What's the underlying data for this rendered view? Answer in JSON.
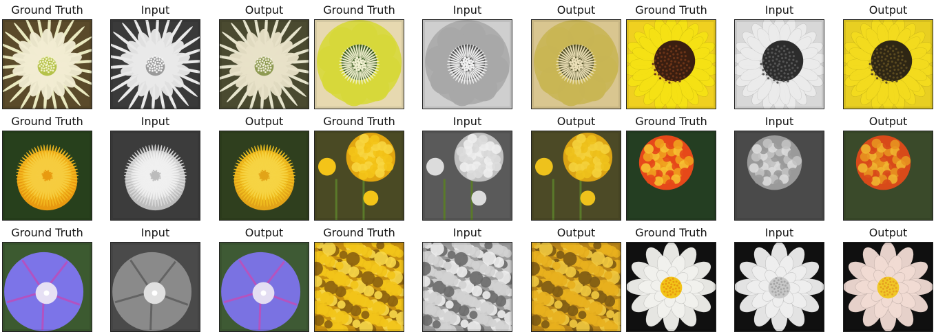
{
  "figure": {
    "rows": [
      [
        {
          "title": "Ground Truth",
          "kind": "cactus",
          "mode": "color",
          "bg": "#5a4a2a",
          "petal": "#f1ecd2",
          "center": "#b5c24a",
          "dot": "#f2f2c8"
        },
        {
          "title": "Input",
          "kind": "cactus",
          "mode": "gray",
          "bg": "#3a3a3a",
          "petal": "#e9e9e9",
          "center": "#9a9a9a",
          "dot": "#f4f4f4"
        },
        {
          "title": "Output",
          "kind": "cactus",
          "mode": "color",
          "bg": "#4a4a30",
          "petal": "#e8e2c8",
          "center": "#8e9a52",
          "dot": "#efedd6"
        },
        {
          "title": "Ground Truth",
          "kind": "anemone",
          "mode": "color",
          "bg": "#e7d9b0",
          "petal": "#d7d83a",
          "center": "#3a5a20",
          "dot": "#f0f0d0"
        },
        {
          "title": "Input",
          "kind": "anemone",
          "mode": "gray",
          "bg": "#cfcfcf",
          "petal": "#a8a8a8",
          "center": "#505050",
          "dot": "#f2f2f2"
        },
        {
          "title": "Output",
          "kind": "anemone",
          "mode": "color",
          "bg": "#d9c690",
          "petal": "#c8b554",
          "center": "#4c4a22",
          "dot": "#ece0b8"
        },
        {
          "title": "Ground Truth",
          "kind": "sunflower",
          "mode": "color",
          "bg": "#f0d020",
          "petal": "#f6e214",
          "center": "#3a1e10",
          "dot": "#6a3418"
        },
        {
          "title": "Input",
          "kind": "sunflower",
          "mode": "gray",
          "bg": "#d8d8d8",
          "petal": "#ececec",
          "center": "#2c2c2c",
          "dot": "#555555"
        },
        {
          "title": "Output",
          "kind": "sunflower",
          "mode": "color",
          "bg": "#e8cf22",
          "petal": "#f4dc1e",
          "center": "#2e2614",
          "dot": "#5a4a20"
        }
      ],
      [
        {
          "title": "Ground Truth",
          "kind": "dandelion",
          "mode": "color",
          "bg": "#27401c",
          "petal": "#f2b820",
          "center": "#e89a10",
          "dot": "#f6cc40"
        },
        {
          "title": "Input",
          "kind": "dandelion",
          "mode": "gray",
          "bg": "#3c3c3c",
          "petal": "#dadada",
          "center": "#bcbcbc",
          "dot": "#f0f0f0"
        },
        {
          "title": "Output",
          "kind": "dandelion",
          "mode": "color",
          "bg": "#2f3f1e",
          "petal": "#f0c020",
          "center": "#e2a418",
          "dot": "#f6d444"
        },
        {
          "title": "Ground Truth",
          "kind": "marigold",
          "mode": "color",
          "bg": "#4a4a24",
          "petal": "#f4c418",
          "center": "#e2a610",
          "dot": "#f8d640"
        },
        {
          "title": "Input",
          "kind": "marigold",
          "mode": "gray",
          "bg": "#5a5a5a",
          "petal": "#dcdcdc",
          "center": "#c0c0c0",
          "dot": "#eeeeee"
        },
        {
          "title": "Output",
          "kind": "marigold",
          "mode": "color",
          "bg": "#4c4a26",
          "petal": "#eec21c",
          "center": "#dca414",
          "dot": "#f4d23c"
        },
        {
          "title": "Ground Truth",
          "kind": "marigold-red",
          "mode": "color",
          "bg": "#243e22",
          "petal": "#e6481a",
          "center": "#f0a01e",
          "dot": "#f6c232"
        },
        {
          "title": "Input",
          "kind": "marigold-red",
          "mode": "gray",
          "bg": "#4a4a4a",
          "petal": "#9a9a9a",
          "center": "#c2c2c2",
          "dot": "#dcdcdc"
        },
        {
          "title": "Output",
          "kind": "marigold-red",
          "mode": "color",
          "bg": "#3a4a2a",
          "petal": "#d84a1a",
          "center": "#e89420",
          "dot": "#f0b630"
        }
      ],
      [
        {
          "title": "Ground Truth",
          "kind": "morning-glory",
          "mode": "color",
          "bg": "#3c5a30",
          "petal": "#7c74e8",
          "center": "#e6e0f4",
          "dot": "#c04ab8"
        },
        {
          "title": "Input",
          "kind": "morning-glory",
          "mode": "gray",
          "bg": "#4a4a4a",
          "petal": "#8a8a8a",
          "center": "#e0e0e0",
          "dot": "#5a5a5a"
        },
        {
          "title": "Output",
          "kind": "morning-glory",
          "mode": "color",
          "bg": "#3e5a34",
          "petal": "#7a72e2",
          "center": "#e4def2",
          "dot": "#c44cb6"
        },
        {
          "title": "Ground Truth",
          "kind": "field",
          "mode": "color",
          "bg": "#c89010",
          "petal": "#f2c41a",
          "center": "#8a6010",
          "dot": "#f8d84a"
        },
        {
          "title": "Input",
          "kind": "field",
          "mode": "gray",
          "bg": "#9a9a9a",
          "petal": "#d2d2d2",
          "center": "#6a6a6a",
          "dot": "#eeeeee"
        },
        {
          "title": "Output",
          "kind": "field",
          "mode": "color",
          "bg": "#b88418",
          "petal": "#e8b01e",
          "center": "#7c5a14",
          "dot": "#f2ca40"
        },
        {
          "title": "Ground Truth",
          "kind": "lotus",
          "mode": "color",
          "bg": "#101010",
          "petal": "#f2f2ee",
          "center": "#f2c418",
          "dot": "#e89a10"
        },
        {
          "title": "Input",
          "kind": "lotus",
          "mode": "gray",
          "bg": "#101010",
          "petal": "#efefef",
          "center": "#c8c8c8",
          "dot": "#a6a6a6"
        },
        {
          "title": "Output",
          "kind": "lotus",
          "mode": "color",
          "bg": "#101010",
          "petal": "#f2dcd4",
          "center": "#f0c828",
          "dot": "#e6a020"
        }
      ]
    ]
  }
}
